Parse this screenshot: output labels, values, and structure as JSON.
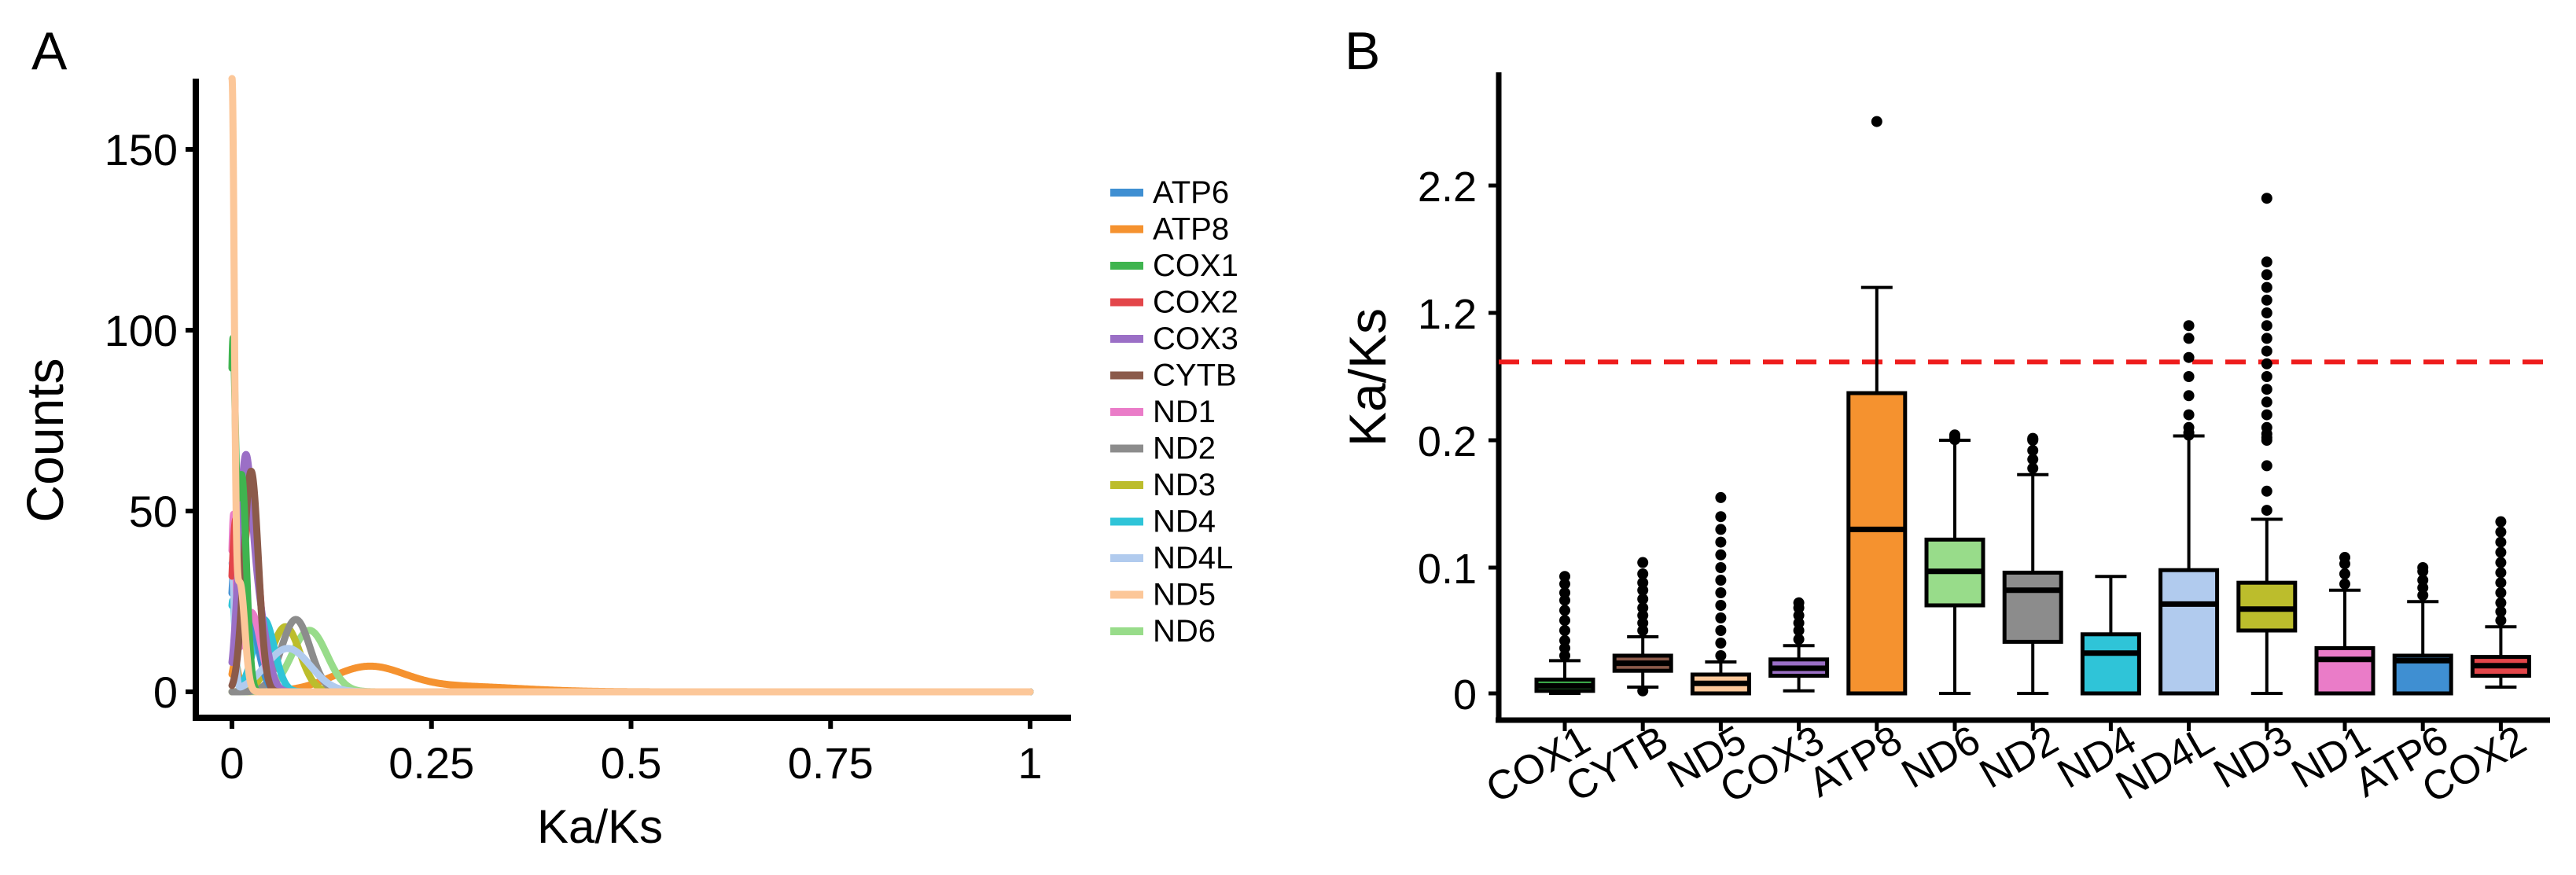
{
  "panels": [
    {
      "label": "A"
    },
    {
      "label": "B"
    }
  ],
  "chart_data": [
    {
      "type": "line",
      "subtype": "density",
      "panel": "A",
      "title": "",
      "xlabel": "Ka/Ks",
      "ylabel": "Counts",
      "xlim": [
        -0.05,
        1.05
      ],
      "ylim": [
        -5,
        168
      ],
      "xticks": [
        0,
        0.25,
        0.5,
        0.75,
        1
      ],
      "xtick_labels": [
        "0",
        "0.25",
        "0.5",
        "0.75",
        "1"
      ],
      "yticks": [
        0,
        50,
        100,
        150
      ],
      "ytick_labels": [
        "0",
        "50",
        "100",
        "150"
      ],
      "legend_position": "right",
      "series": [
        {
          "name": "ATP6",
          "color": "#3f8fd2",
          "peaks": [
            {
              "x": 0.004,
              "h": 30,
              "w": 0.005
            },
            {
              "x": 0.02,
              "h": 22,
              "w": 0.012
            }
          ]
        },
        {
          "name": "ATP8",
          "color": "#f5922f",
          "peaks": [
            {
              "x": 0.004,
              "h": 8,
              "w": 0.004
            },
            {
              "x": 0.17,
              "h": 6.5,
              "w": 0.045
            },
            {
              "x": 0.28,
              "h": 1.5,
              "w": 0.08
            }
          ]
        },
        {
          "name": "COX1",
          "color": "#3fb44f",
          "peaks": [
            {
              "x": 0.001,
              "h": 86,
              "w": 0.003
            },
            {
              "x": 0.012,
              "h": 60,
              "w": 0.006
            }
          ]
        },
        {
          "name": "COX2",
          "color": "#e3464a",
          "peaks": [
            {
              "x": 0.004,
              "h": 40,
              "w": 0.005
            },
            {
              "x": 0.024,
              "h": 52,
              "w": 0.01
            }
          ]
        },
        {
          "name": "COX3",
          "color": "#9b6fc6",
          "peaks": [
            {
              "x": 0.016,
              "h": 52,
              "w": 0.008
            },
            {
              "x": 0.03,
              "h": 25,
              "w": 0.012
            }
          ]
        },
        {
          "name": "CYTB",
          "color": "#8b5a4a",
          "peaks": [
            {
              "x": 0.024,
              "h": 61,
              "w": 0.009
            }
          ]
        },
        {
          "name": "ND1",
          "color": "#ea7cc8",
          "peaks": [
            {
              "x": 0.002,
              "h": 45,
              "w": 0.003
            },
            {
              "x": 0.024,
              "h": 22,
              "w": 0.012
            }
          ]
        },
        {
          "name": "ND2",
          "color": "#8c8c8c",
          "peaks": [
            {
              "x": 0.08,
              "h": 20,
              "w": 0.018
            }
          ]
        },
        {
          "name": "ND3",
          "color": "#bcbd2c",
          "peaks": [
            {
              "x": 0.067,
              "h": 18,
              "w": 0.018
            }
          ]
        },
        {
          "name": "ND4",
          "color": "#2fc4d8",
          "peaks": [
            {
              "x": 0.001,
              "h": 25,
              "w": 0.003
            },
            {
              "x": 0.04,
              "h": 20,
              "w": 0.013
            }
          ]
        },
        {
          "name": "ND4L",
          "color": "#b1cbee",
          "peaks": [
            {
              "x": 0.0,
              "h": 35,
              "w": 0.003
            },
            {
              "x": 0.07,
              "h": 12,
              "w": 0.028
            }
          ]
        },
        {
          "name": "ND5",
          "color": "#fcc799",
          "peaks": [
            {
              "x": 0.0,
              "h": 162,
              "w": 0.0028
            },
            {
              "x": 0.01,
              "h": 30,
              "w": 0.006
            }
          ]
        },
        {
          "name": "ND6",
          "color": "#98dc8a",
          "peaks": [
            {
              "x": 0.097,
              "h": 17,
              "w": 0.022
            }
          ]
        }
      ]
    },
    {
      "type": "box",
      "panel": "B",
      "title": "",
      "xlabel": "",
      "ylabel": "Ka/Ks",
      "y_scale": "compressed (non-linear)",
      "ylim": [
        0,
        2.9
      ],
      "yticks": [
        0,
        0.1,
        0.2,
        1.2,
        2.2
      ],
      "ytick_labels": [
        "0",
        "0.1",
        "0.2",
        "1.2",
        "2.2"
      ],
      "threshold": {
        "value": 1.0,
        "style": "dashed",
        "color": "#ee1c1c"
      },
      "categories": [
        "COX1",
        "CYTB",
        "ND5",
        "COX3",
        "ATP8",
        "ND6",
        "ND2",
        "ND4",
        "ND4L",
        "ND3",
        "ND1",
        "ATP6",
        "COX2"
      ],
      "boxes": [
        {
          "name": "COX1",
          "color": "#3fb44f",
          "min": 0.0,
          "q1": 0.002,
          "median": 0.006,
          "q3": 0.011,
          "max": 0.026,
          "outliers": [
            0.03,
            0.036,
            0.042,
            0.05,
            0.058,
            0.066,
            0.074,
            0.08,
            0.087,
            0.093
          ]
        },
        {
          "name": "CYTB",
          "color": "#8b5a4a",
          "min": 0.005,
          "q1": 0.018,
          "median": 0.024,
          "q3": 0.03,
          "max": 0.045,
          "outliers": [
            0.002,
            0.05,
            0.056,
            0.062,
            0.068,
            0.075,
            0.082,
            0.088,
            0.095,
            0.104
          ]
        },
        {
          "name": "ND5",
          "color": "#fcc799",
          "min": 0.0,
          "q1": 0.0,
          "median": 0.008,
          "q3": 0.015,
          "max": 0.025,
          "outliers": [
            0.03,
            0.04,
            0.05,
            0.06,
            0.07,
            0.08,
            0.09,
            0.1,
            0.11,
            0.12,
            0.13,
            0.14,
            0.155
          ]
        },
        {
          "name": "COX3",
          "color": "#9b6fc6",
          "min": 0.002,
          "q1": 0.014,
          "median": 0.02,
          "q3": 0.027,
          "max": 0.038,
          "outliers": [
            0.043,
            0.05,
            0.056,
            0.062,
            0.068,
            0.072
          ]
        },
        {
          "name": "ATP8",
          "color": "#f5922f",
          "min": 0.0,
          "q1": 0.0,
          "median": 0.13,
          "q3": 0.57,
          "max": 1.4,
          "outliers": [
            2.7
          ]
        },
        {
          "name": "ND6",
          "color": "#98dc8a",
          "min": 0.0,
          "q1": 0.07,
          "median": 0.097,
          "q3": 0.122,
          "max": 0.2,
          "outliers": [
            0.205,
            0.21,
            0.22,
            0.232,
            0.242
          ]
        },
        {
          "name": "ND2",
          "color": "#8c8c8c",
          "min": 0.0,
          "q1": 0.041,
          "median": 0.082,
          "q3": 0.096,
          "max": 0.173,
          "outliers": [
            0.178,
            0.185,
            0.192,
            0.2,
            0.207,
            0.215
          ]
        },
        {
          "name": "ND4",
          "color": "#2fc4d8",
          "min": 0.0,
          "q1": 0.0,
          "median": 0.032,
          "q3": 0.047,
          "max": 0.093,
          "outliers": []
        },
        {
          "name": "ND4L",
          "color": "#b1cbee",
          "min": 0.0,
          "q1": 0.0,
          "median": 0.071,
          "q3": 0.098,
          "max": 0.234,
          "outliers": [
            0.24,
            0.26,
            0.3,
            0.4,
            0.55,
            0.7,
            0.85,
            1.0,
            1.1
          ]
        },
        {
          "name": "ND3",
          "color": "#bcbd2c",
          "min": 0.0,
          "q1": 0.05,
          "median": 0.067,
          "q3": 0.088,
          "max": 0.138,
          "outliers": [
            0.145,
            0.16,
            0.18,
            0.2,
            0.22,
            0.25,
            0.3,
            0.4,
            0.5,
            0.6,
            0.7,
            0.8,
            0.9,
            1.0,
            1.1,
            1.2,
            1.3,
            1.4,
            1.5,
            1.6,
            2.1
          ]
        },
        {
          "name": "ND1",
          "color": "#ea7cc8",
          "min": 0.0,
          "q1": 0.0,
          "median": 0.027,
          "q3": 0.036,
          "max": 0.082,
          "outliers": [
            0.087,
            0.095,
            0.103,
            0.108
          ]
        },
        {
          "name": "ATP6",
          "color": "#3f8fd2",
          "min": 0.0,
          "q1": 0.0,
          "median": 0.026,
          "q3": 0.03,
          "max": 0.073,
          "outliers": [
            0.078,
            0.084,
            0.09,
            0.097,
            0.1
          ]
        },
        {
          "name": "COX2",
          "color": "#e3464a",
          "min": 0.005,
          "q1": 0.014,
          "median": 0.022,
          "q3": 0.029,
          "max": 0.053,
          "outliers": [
            0.058,
            0.065,
            0.072,
            0.08,
            0.088,
            0.096,
            0.104,
            0.112,
            0.12,
            0.128,
            0.136
          ]
        }
      ]
    }
  ]
}
